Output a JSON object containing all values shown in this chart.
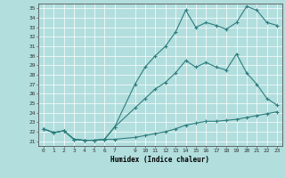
{
  "xlabel": "Humidex (Indice chaleur)",
  "bg_color": "#b2dede",
  "grid_color": "#ffffff",
  "line_color": "#2d7d7d",
  "xlim": [
    -0.5,
    23.5
  ],
  "ylim": [
    20.5,
    35.5
  ],
  "xticks": [
    0,
    1,
    2,
    3,
    4,
    5,
    6,
    7,
    9,
    10,
    11,
    12,
    13,
    14,
    15,
    16,
    17,
    18,
    19,
    20,
    21,
    22,
    23
  ],
  "yticks": [
    21,
    22,
    23,
    24,
    25,
    26,
    27,
    28,
    29,
    30,
    31,
    32,
    33,
    34,
    35
  ],
  "line1_x": [
    0,
    1,
    2,
    3,
    4,
    5,
    6,
    7,
    9,
    10,
    11,
    12,
    13,
    14,
    15,
    16,
    17,
    18,
    19,
    20,
    21,
    22,
    23
  ],
  "line1_y": [
    22.3,
    21.9,
    22.1,
    21.2,
    21.1,
    21.1,
    21.2,
    21.2,
    21.4,
    21.6,
    21.8,
    22.0,
    22.3,
    22.7,
    22.9,
    23.1,
    23.1,
    23.2,
    23.3,
    23.5,
    23.7,
    23.9,
    24.1
  ],
  "line2_x": [
    0,
    1,
    2,
    3,
    4,
    5,
    6,
    7,
    9,
    10,
    11,
    12,
    13,
    14,
    15,
    16,
    17,
    18,
    19,
    20,
    21,
    22,
    23
  ],
  "line2_y": [
    22.3,
    21.9,
    22.1,
    21.2,
    21.1,
    21.1,
    21.2,
    22.5,
    24.5,
    25.5,
    26.5,
    27.2,
    28.2,
    29.5,
    28.8,
    29.3,
    28.8,
    28.5,
    30.2,
    28.2,
    27.0,
    25.5,
    24.8
  ],
  "line3_x": [
    0,
    1,
    2,
    3,
    4,
    5,
    6,
    7,
    9,
    10,
    11,
    12,
    13,
    14,
    15,
    16,
    17,
    18,
    19,
    20,
    21,
    22,
    23
  ],
  "line3_y": [
    22.3,
    21.9,
    22.1,
    21.2,
    21.1,
    21.1,
    21.2,
    22.5,
    27.0,
    28.8,
    30.0,
    31.0,
    32.5,
    34.8,
    33.0,
    33.5,
    33.2,
    32.8,
    33.5,
    35.2,
    34.8,
    33.5,
    33.2
  ]
}
